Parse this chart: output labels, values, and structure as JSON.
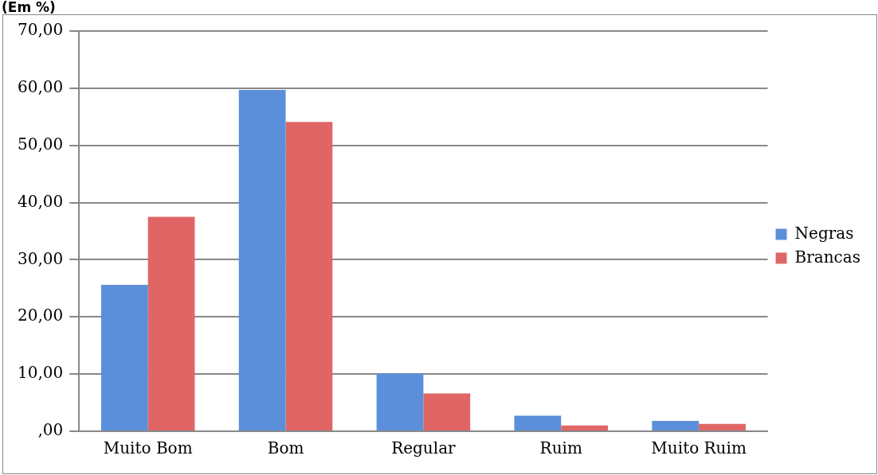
{
  "chart_data": {
    "type": "bar",
    "title": "(Em %)",
    "categories": [
      "Muito Bom",
      "Bom",
      "Regular",
      "Ruim",
      "Muito Ruim"
    ],
    "series": [
      {
        "name": "Negras",
        "color": "#5b8fd9",
        "values": [
          25.6,
          59.7,
          10.1,
          2.7,
          1.8
        ]
      },
      {
        "name": "Brancas",
        "color": "#e06666",
        "values": [
          37.5,
          54.1,
          6.6,
          1.0,
          1.3
        ]
      }
    ],
    "ylim": [
      0,
      70
    ],
    "yticks": [
      {
        "value": 0,
        "label": ",00"
      },
      {
        "value": 10,
        "label": "10,00"
      },
      {
        "value": 20,
        "label": "20,00"
      },
      {
        "value": 30,
        "label": "30,00"
      },
      {
        "value": 40,
        "label": "40,00"
      },
      {
        "value": 50,
        "label": "50,00"
      },
      {
        "value": 60,
        "label": "60,00"
      },
      {
        "value": 70,
        "label": "70,00"
      }
    ],
    "grid": "y",
    "legend": "right"
  }
}
